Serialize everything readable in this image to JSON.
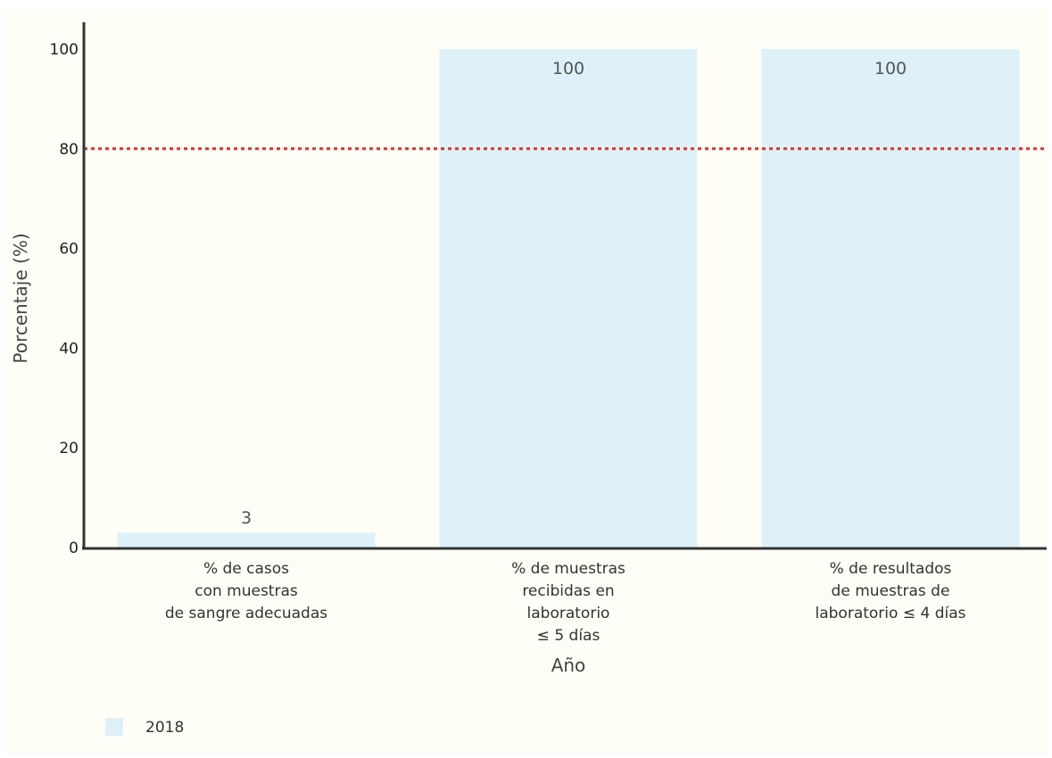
{
  "chart_data": {
    "type": "bar",
    "categories": [
      [
        "% de casos",
        "con muestras",
        "de sangre adecuadas"
      ],
      [
        "% de muestras",
        "recibidas en",
        "laboratorio",
        "≤ 5 días"
      ],
      [
        "% de resultados",
        "de muestras de",
        "laboratorio ≤ 4 días"
      ]
    ],
    "series": [
      {
        "name": "2018",
        "values": [
          3,
          100,
          100
        ],
        "color": "#dff1f8"
      }
    ],
    "data_labels": [
      "3",
      "100",
      "100"
    ],
    "xlabel": "Año",
    "ylabel": "Porcentaje (%)",
    "ylim": [
      0,
      100
    ],
    "yticks": [
      0,
      20,
      40,
      60,
      80,
      100
    ],
    "reference_line": {
      "value": 80,
      "color": "#d9342b",
      "style": "dotted"
    },
    "grid": false,
    "legend_position": "bottom-left",
    "background_color": "#fefdf6",
    "axis_color": "#333333"
  }
}
